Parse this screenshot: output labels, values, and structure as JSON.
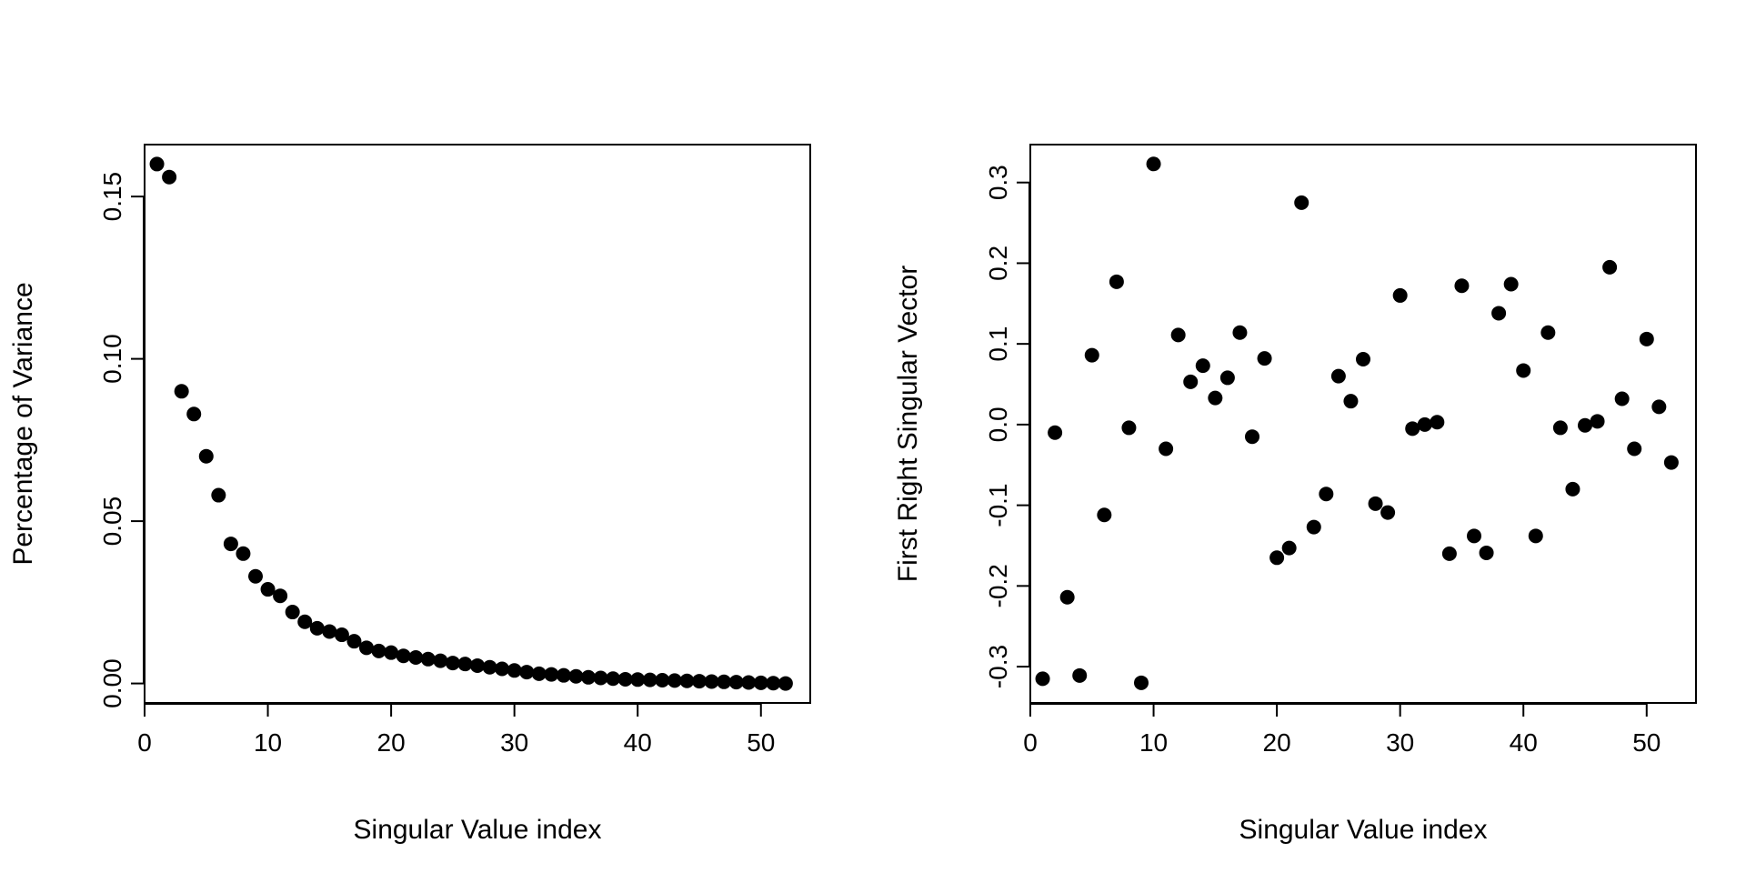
{
  "chart_data": [
    {
      "type": "scatter",
      "title": "",
      "xlabel": "Singular Value index",
      "ylabel": "Percentage of Variance",
      "xlim": [
        0,
        54
      ],
      "ylim": [
        -0.006,
        0.166
      ],
      "x_ticks": [
        0,
        10,
        20,
        30,
        40,
        50
      ],
      "y_ticks": [
        0.0,
        0.05,
        0.1,
        0.15
      ],
      "x_tick_labels": [
        "0",
        "10",
        "20",
        "30",
        "40",
        "50"
      ],
      "y_tick_labels": [
        "0.00",
        "0.05",
        "0.10",
        "0.15"
      ],
      "grid": false,
      "marker_color": "#000000",
      "x": [
        1,
        2,
        3,
        4,
        5,
        6,
        7,
        8,
        9,
        10,
        11,
        12,
        13,
        14,
        15,
        16,
        17,
        18,
        19,
        20,
        21,
        22,
        23,
        24,
        25,
        26,
        27,
        28,
        29,
        30,
        31,
        32,
        33,
        34,
        35,
        36,
        37,
        38,
        39,
        40,
        41,
        42,
        43,
        44,
        45,
        46,
        47,
        48,
        49,
        50,
        51,
        52
      ],
      "y": [
        0.16,
        0.156,
        0.09,
        0.083,
        0.07,
        0.058,
        0.043,
        0.04,
        0.033,
        0.029,
        0.027,
        0.022,
        0.019,
        0.017,
        0.016,
        0.015,
        0.013,
        0.011,
        0.01,
        0.0095,
        0.0085,
        0.008,
        0.0075,
        0.007,
        0.0063,
        0.006,
        0.0055,
        0.005,
        0.0045,
        0.004,
        0.0035,
        0.003,
        0.0028,
        0.0025,
        0.0022,
        0.0019,
        0.0017,
        0.0015,
        0.0013,
        0.0012,
        0.0011,
        0.001,
        0.0009,
        0.0008,
        0.0007,
        0.0006,
        0.0005,
        0.0004,
        0.0003,
        0.0002,
        0.0001,
        0.0
      ]
    },
    {
      "type": "scatter",
      "title": "",
      "xlabel": "Singular Value index",
      "ylabel": "First Right Singular Vector",
      "xlim": [
        0,
        54
      ],
      "ylim": [
        -0.345,
        0.347
      ],
      "x_ticks": [
        0,
        10,
        20,
        30,
        40,
        50
      ],
      "y_ticks": [
        -0.3,
        -0.2,
        -0.1,
        0.0,
        0.1,
        0.2,
        0.3
      ],
      "x_tick_labels": [
        "0",
        "10",
        "20",
        "30",
        "40",
        "50"
      ],
      "y_tick_labels": [
        "-0.3",
        "-0.2",
        "-0.1",
        "0.0",
        "0.1",
        "0.2",
        "0.3"
      ],
      "grid": false,
      "marker_color": "#000000",
      "x": [
        1,
        2,
        3,
        4,
        5,
        6,
        7,
        8,
        9,
        10,
        11,
        12,
        13,
        14,
        15,
        16,
        17,
        18,
        19,
        20,
        21,
        22,
        23,
        24,
        25,
        26,
        27,
        28,
        29,
        30,
        31,
        32,
        33,
        34,
        35,
        36,
        37,
        38,
        39,
        40,
        41,
        42,
        43,
        44,
        45,
        46,
        47,
        48,
        49,
        50,
        51,
        52
      ],
      "y": [
        -0.315,
        -0.01,
        -0.214,
        -0.311,
        0.086,
        -0.112,
        0.177,
        -0.004,
        -0.32,
        0.323,
        -0.03,
        0.111,
        0.053,
        0.073,
        0.033,
        0.058,
        0.114,
        -0.015,
        0.082,
        -0.165,
        -0.153,
        0.275,
        -0.127,
        -0.086,
        0.06,
        0.029,
        0.081,
        -0.098,
        -0.109,
        0.16,
        -0.005,
        0.0,
        0.003,
        -0.16,
        0.172,
        -0.138,
        -0.159,
        0.138,
        0.174,
        0.067,
        -0.138,
        0.114,
        -0.004,
        -0.08,
        -0.001,
        0.004,
        0.195,
        0.032,
        -0.03,
        0.106,
        0.022,
        -0.047
      ]
    }
  ]
}
